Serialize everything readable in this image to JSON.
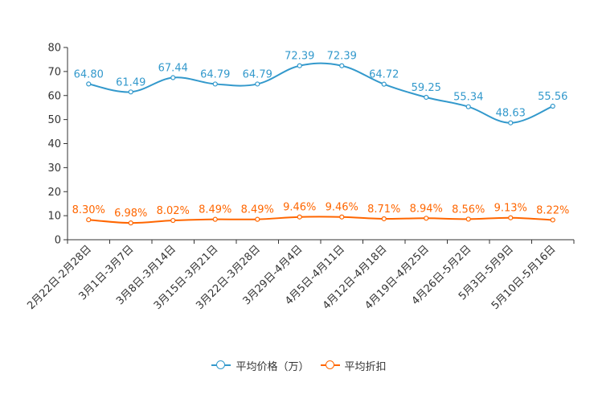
{
  "chart_data": {
    "type": "line",
    "categories": [
      "2月22日-2月28日",
      "3月1日-3月7日",
      "3月8日-3月14日",
      "3月15日-3月21日",
      "3月22日-3月28日",
      "3月29日-4月4日",
      "4月5日-4月11日",
      "4月12日-4月18日",
      "4月19日-4月25日",
      "4月26日-5月2日",
      "5月3日-5月9日",
      "5月10日-5月16日"
    ],
    "ylim": [
      0,
      80
    ],
    "yticks": [
      0,
      10,
      20,
      30,
      40,
      50,
      60,
      70,
      80
    ],
    "series": [
      {
        "name": "平均价格（万）",
        "color": "#3399cc",
        "values": [
          64.8,
          61.49,
          67.44,
          64.79,
          64.79,
          72.39,
          72.39,
          64.72,
          59.25,
          55.34,
          48.63,
          55.56
        ],
        "labels": [
          "64.80",
          "61.49",
          "67.44",
          "64.79",
          "64.79",
          "72.39",
          "72.39",
          "64.72",
          "59.25",
          "55.34",
          "48.63",
          "55.56"
        ]
      },
      {
        "name": "平均折扣",
        "color": "#ff6600",
        "values": [
          8.3,
          6.98,
          8.02,
          8.49,
          8.49,
          9.46,
          9.46,
          8.71,
          8.94,
          8.56,
          9.13,
          8.22
        ],
        "labels": [
          "8.30%",
          "6.98%",
          "8.02%",
          "8.49%",
          "8.49%",
          "9.46%",
          "9.46%",
          "8.71%",
          "8.94%",
          "8.56%",
          "9.13%",
          "8.22%"
        ]
      }
    ],
    "title": "",
    "xlabel": "",
    "ylabel": "",
    "legend": "bottom-center"
  }
}
